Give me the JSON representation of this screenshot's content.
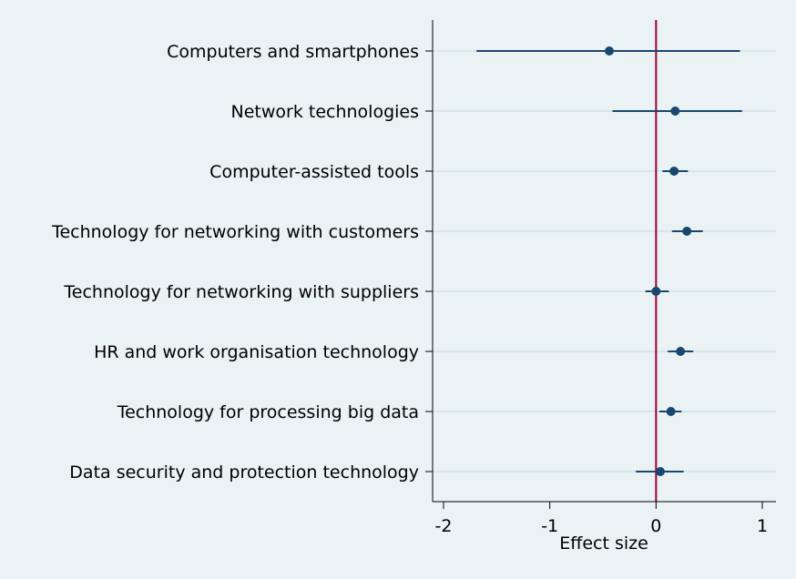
{
  "chart_data": {
    "type": "scatter",
    "subtype": "coefficient-plot",
    "title": "",
    "xlabel": "Effect size",
    "ylabel": "",
    "xlim": [
      -2.1,
      1.12
    ],
    "xticks": [
      -2,
      -1,
      0,
      1
    ],
    "xtick_labels": [
      "-2",
      "-1",
      "0",
      "1"
    ],
    "reference_line": {
      "x": 0,
      "color": "#990033"
    },
    "marker_color": "#1a476f",
    "gridlines": "horizontal",
    "categories": [
      "Computers and smartphones",
      "Network technologies",
      "Computer-assisted tools",
      "Technology for networking with customers",
      "Technology for networking with suppliers",
      "HR and work organisation technology",
      "Technology for processing big data",
      "Data security and protection technology"
    ],
    "estimates": [
      -0.44,
      0.18,
      0.17,
      0.29,
      0.0,
      0.23,
      0.14,
      0.04
    ],
    "ci_lower": [
      -1.69,
      -0.41,
      0.06,
      0.15,
      -0.1,
      0.11,
      0.03,
      -0.19
    ],
    "ci_upper": [
      0.79,
      0.81,
      0.3,
      0.44,
      0.12,
      0.35,
      0.24,
      0.26
    ]
  }
}
